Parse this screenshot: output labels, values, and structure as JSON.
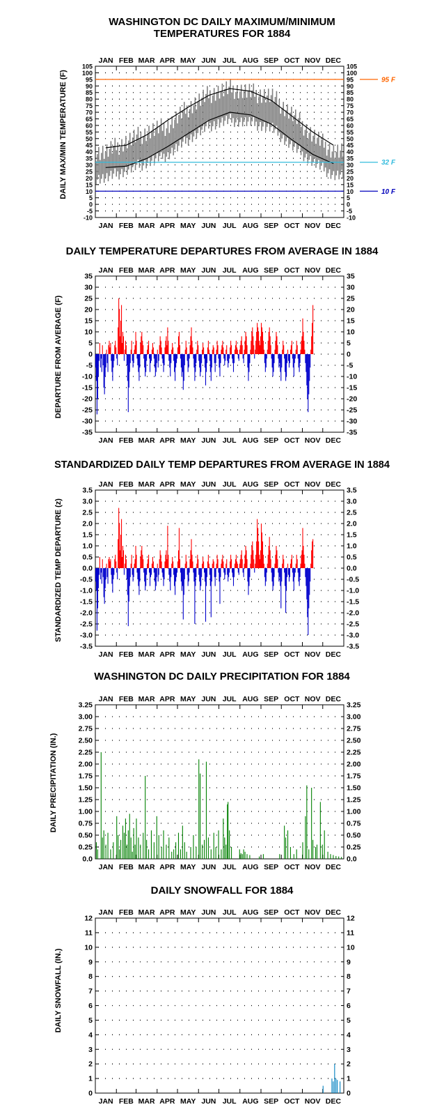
{
  "colors": {
    "above": "#ff0000",
    "below": "#0000cc",
    "precip": "#008000",
    "snow": "#0080c0",
    "line95": "#ff6600",
    "line32": "#33bbdd",
    "line10": "#0000bb",
    "obs": "#808080"
  },
  "chart_data": [
    {
      "type": "line",
      "title": "WASHINGTON DC DAILY MAXIMUM/MINIMUM\nTEMPERATURES FOR 1884",
      "ylabel": "DAILY MAX/MIN TEMPERATURE (F)",
      "months": [
        "JAN",
        "FEB",
        "MAR",
        "APR",
        "MAY",
        "JUN",
        "JUL",
        "AUG",
        "SEP",
        "OCT",
        "NOV",
        "DEC"
      ],
      "ylim": [
        -10,
        105
      ],
      "yticks": [
        "-10",
        "-5",
        "0",
        "5",
        "10",
        "15",
        "20",
        "25",
        "30",
        "35",
        "40",
        "45",
        "50",
        "55",
        "60",
        "65",
        "70",
        "75",
        "80",
        "85",
        "90",
        "95",
        "100",
        "105"
      ],
      "grid": true,
      "reference_lines": [
        {
          "value": 95,
          "label": "95 F",
          "color": "#ff6600"
        },
        {
          "value": 32,
          "label": "32 F",
          "color": "#33bbdd"
        },
        {
          "value": 10,
          "label": "10 F",
          "color": "#0000bb"
        }
      ],
      "series": [
        {
          "name": "",
          "note": "observed daily max/min range (gray band), approx. monthly center range",
          "max": [
            40,
            48,
            55,
            60,
            74,
            84,
            88,
            85,
            82,
            68,
            52,
            40
          ],
          "min": [
            24,
            30,
            36,
            42,
            54,
            64,
            68,
            66,
            62,
            48,
            36,
            26
          ]
        },
        {
          "name": "",
          "values": [
            43,
            45,
            53,
            64,
            74,
            83,
            88,
            86,
            79,
            67,
            55,
            45
          ]
        },
        {
          "name": "",
          "values": [
            28,
            29,
            35,
            44,
            54,
            64,
            70,
            68,
            61,
            49,
            38,
            31
          ]
        }
      ]
    },
    {
      "type": "bar",
      "title": "DAILY TEMPERATURE DEPARTURES FROM AVERAGE IN 1884",
      "ylabel": "DEPARTURE FROM AVERAGE (F)",
      "months": [
        "JAN",
        "FEB",
        "MAR",
        "APR",
        "MAY",
        "JUN",
        "JUL",
        "AUG",
        "SEP",
        "OCT",
        "NOV",
        "DEC"
      ],
      "ylim": [
        -35,
        35
      ],
      "yticks": [
        "-35",
        "-30",
        "-25",
        "-20",
        "-15",
        "-10",
        "-5",
        "0",
        "5",
        "10",
        "15",
        "20",
        "25",
        "30",
        "35"
      ],
      "grid": true,
      "values": [
        -6,
        -12,
        -27,
        -20,
        -10,
        -3,
        5,
        -6,
        -2,
        -8,
        4,
        -5,
        -15,
        -18,
        -10,
        -6,
        2,
        -4,
        -8,
        4,
        6,
        3,
        5,
        -3,
        -8,
        -12,
        -6,
        -3,
        4,
        6,
        3,
        -2,
        -5,
        12,
        25,
        20,
        8,
        15,
        22,
        5,
        10,
        8,
        -3,
        2,
        6,
        4,
        -5,
        -12,
        -26,
        -15,
        -8,
        -4,
        2,
        6,
        -3,
        -6,
        -4,
        2,
        4,
        10,
        6,
        -2,
        -5,
        -8,
        -12,
        -6,
        5,
        8,
        10,
        6,
        4,
        -2,
        -6,
        -10,
        -8,
        -3,
        2,
        4,
        6,
        -2,
        -8,
        -4,
        -3,
        2,
        5,
        3,
        -2,
        -6,
        -10,
        -8,
        -4,
        2,
        -6,
        -3,
        4,
        8,
        6,
        3,
        -2,
        -4,
        -8,
        -5,
        3,
        6,
        8,
        4,
        12,
        6,
        -3,
        -6,
        -10,
        -4,
        2,
        5,
        3,
        -3,
        -8,
        -12,
        -6,
        -4,
        -2,
        3,
        8,
        10,
        4,
        -2,
        -6,
        -10,
        -8,
        -16,
        -12,
        -5,
        2,
        6,
        3,
        -3,
        -8,
        -6,
        -2,
        4,
        8,
        12,
        6,
        3,
        -2,
        -6,
        -12,
        -8,
        -4,
        2,
        6,
        4,
        -3,
        -6,
        -10,
        -8,
        -4,
        2,
        5,
        3,
        -2,
        -6,
        -14,
        -8,
        -4,
        3,
        6,
        2,
        -3,
        -8,
        -12,
        -6,
        2,
        4,
        3,
        -4,
        -8,
        -4,
        2,
        6,
        4,
        -2,
        -6,
        -10,
        -4,
        2,
        4,
        6,
        3,
        -2,
        -5,
        -3,
        2,
        4,
        -3,
        -6,
        -4,
        -2,
        3,
        6,
        4,
        -2,
        -4,
        -8,
        -4,
        2,
        4,
        6,
        3,
        2,
        -2,
        -3,
        2,
        4,
        6,
        8,
        4,
        -2,
        -4,
        2,
        6,
        10,
        8,
        4,
        -6,
        -12,
        -8,
        -4,
        2,
        6,
        10,
        12,
        8,
        4,
        -2,
        2,
        6,
        10,
        14,
        12,
        10,
        6,
        4,
        8,
        14,
        12,
        10,
        6,
        2,
        -4,
        -8,
        -6,
        -2,
        2,
        6,
        10,
        12,
        8,
        4,
        -2,
        -6,
        -10,
        -8,
        -4,
        2,
        6,
        10,
        8,
        4,
        -2,
        -6,
        -4,
        -8,
        -12,
        -6,
        2,
        6,
        4,
        -2,
        -8,
        -12,
        -10,
        -4,
        2,
        -3,
        -6,
        -4,
        2,
        4,
        6,
        -2,
        -6,
        -10,
        -4,
        -2,
        2,
        6,
        4,
        -2,
        -6,
        -8,
        -4,
        2,
        6,
        8,
        16,
        10,
        6,
        2,
        -4,
        -8,
        -14,
        -20,
        -26,
        -18,
        -12,
        -6,
        2,
        8,
        14,
        22
      ]
    },
    {
      "type": "bar",
      "title": "STANDARDIZED DAILY TEMP DEPARTURES FROM AVERAGE IN 1884",
      "ylabel": "STANDARDIZED TEMP DEPARTURE (z)",
      "months": [
        "JAN",
        "FEB",
        "MAR",
        "APR",
        "MAY",
        "JUN",
        "JUL",
        "AUG",
        "SEP",
        "OCT",
        "NOV",
        "DEC"
      ],
      "ylim": [
        -3.5,
        3.5
      ],
      "yticks": [
        "-3.5",
        "-3.0",
        "-2.5",
        "-2.0",
        "-1.5",
        "-1.0",
        "-0.5",
        "0.0",
        "0.5",
        "1.0",
        "1.5",
        "2.0",
        "2.5",
        "3.0",
        "3.5"
      ],
      "grid": true,
      "values": [
        -0.6,
        -1.0,
        -2.8,
        -1.8,
        -0.9,
        -0.3,
        0.5,
        -0.5,
        -0.2,
        -0.7,
        0.4,
        -0.4,
        -1.3,
        -1.6,
        -0.9,
        -0.5,
        0.2,
        -0.4,
        -0.7,
        0.4,
        0.5,
        0.3,
        0.4,
        -0.3,
        -0.7,
        -1.1,
        -0.5,
        -0.3,
        0.4,
        0.6,
        0.3,
        -0.2,
        -0.5,
        1.3,
        2.7,
        2.0,
        0.8,
        1.5,
        2.2,
        0.5,
        1.0,
        0.8,
        -0.3,
        0.2,
        0.6,
        0.4,
        -0.5,
        -1.2,
        -2.6,
        -1.5,
        -0.8,
        -0.4,
        0.2,
        0.6,
        -0.3,
        -0.6,
        -0.4,
        0.2,
        0.4,
        1.0,
        0.6,
        -0.2,
        -0.5,
        -0.8,
        -1.2,
        -0.6,
        0.5,
        0.8,
        1.0,
        0.6,
        0.4,
        -0.2,
        -0.6,
        -1.0,
        -0.8,
        -0.3,
        0.2,
        0.4,
        0.6,
        -0.2,
        -0.8,
        -0.4,
        -0.3,
        0.2,
        0.5,
        0.3,
        -0.2,
        -0.6,
        -1.0,
        -0.8,
        -0.4,
        0.2,
        -0.6,
        -0.3,
        0.4,
        0.8,
        0.6,
        0.3,
        -0.2,
        -0.4,
        -0.8,
        -0.5,
        0.3,
        0.6,
        0.8,
        0.4,
        1.9,
        0.6,
        -0.3,
        -0.6,
        -1.0,
        -0.4,
        0.2,
        0.5,
        0.3,
        -0.3,
        -0.8,
        -1.2,
        -0.6,
        -0.4,
        -0.2,
        0.3,
        0.8,
        1.8,
        0.4,
        -0.2,
        -0.6,
        -1.0,
        -0.8,
        -2.3,
        -1.2,
        -0.5,
        0.2,
        0.6,
        0.3,
        -0.3,
        -0.8,
        -0.6,
        -0.2,
        0.4,
        0.8,
        1.3,
        0.6,
        0.3,
        -0.2,
        -0.6,
        -2.5,
        -0.8,
        -0.4,
        0.2,
        0.6,
        0.4,
        -0.3,
        -0.6,
        -1.0,
        -0.8,
        -0.4,
        0.2,
        0.5,
        0.3,
        -0.2,
        -0.6,
        -2.4,
        -0.8,
        -0.4,
        0.3,
        0.6,
        0.2,
        -0.3,
        -0.8,
        -2.2,
        -0.6,
        0.2,
        0.4,
        0.3,
        -0.4,
        -0.8,
        -0.4,
        0.2,
        0.6,
        0.4,
        -0.2,
        -0.6,
        -1.6,
        -0.4,
        0.2,
        0.4,
        0.6,
        0.3,
        -0.2,
        -0.5,
        -0.3,
        0.2,
        0.4,
        -0.3,
        -0.6,
        -0.4,
        -0.2,
        0.3,
        0.6,
        0.4,
        -0.2,
        -0.4,
        -0.8,
        -0.4,
        0.2,
        0.4,
        0.6,
        0.3,
        0.2,
        -0.2,
        -0.3,
        0.2,
        0.4,
        0.6,
        0.8,
        0.4,
        -0.2,
        -0.4,
        0.2,
        0.6,
        1.0,
        0.8,
        0.4,
        -0.6,
        -1.2,
        -0.8,
        -0.4,
        0.2,
        0.6,
        1.0,
        1.2,
        0.8,
        0.4,
        -0.2,
        0.2,
        0.6,
        1.2,
        2.2,
        1.8,
        1.2,
        0.6,
        0.4,
        0.8,
        2.0,
        1.6,
        1.2,
        0.6,
        0.2,
        -0.4,
        -0.8,
        -0.6,
        -0.2,
        0.2,
        0.6,
        1.0,
        1.4,
        0.8,
        0.4,
        -0.2,
        -0.6,
        -1.0,
        -0.8,
        -0.4,
        0.2,
        0.6,
        1.0,
        0.8,
        0.4,
        -0.2,
        -0.6,
        -0.4,
        -0.8,
        -1.8,
        -0.6,
        0.2,
        0.6,
        0.4,
        -0.2,
        -0.8,
        -2.0,
        -1.0,
        -0.4,
        0.2,
        -0.3,
        -0.6,
        -0.4,
        0.2,
        0.4,
        0.6,
        -0.2,
        -0.6,
        -1.0,
        -0.4,
        -0.2,
        0.2,
        0.6,
        0.4,
        -0.2,
        -0.6,
        -0.8,
        -0.4,
        0.2,
        0.6,
        0.8,
        1.8,
        1.0,
        0.6,
        0.2,
        -0.4,
        -0.8,
        -1.4,
        -2.2,
        -3.0,
        -1.8,
        -1.2,
        -0.6,
        0.2,
        0.8,
        1.2,
        1.3
      ]
    },
    {
      "type": "bar",
      "title": "WASHINGTON DC DAILY PRECIPITATION FOR 1884",
      "ylabel": "DAILY PRECIPITATION (IN.)",
      "months": [
        "JAN",
        "FEB",
        "MAR",
        "APR",
        "MAY",
        "JUN",
        "JUL",
        "AUG",
        "SEP",
        "OCT",
        "NOV",
        "DEC"
      ],
      "ylim": [
        0,
        3.25
      ],
      "yticks": [
        "0.0",
        "0.25",
        "0.50",
        "0.75",
        "1.00",
        "1.25",
        "1.50",
        "1.75",
        "2.00",
        "2.25",
        "2.50",
        "2.75",
        "3.00",
        "3.25"
      ],
      "grid": true,
      "events": [
        [
          1,
          0.35
        ],
        [
          3,
          0.2
        ],
        [
          8,
          2.25
        ],
        [
          10,
          0.45
        ],
        [
          12,
          0.6
        ],
        [
          15,
          0.3
        ],
        [
          18,
          0.55
        ],
        [
          22,
          0.2
        ],
        [
          26,
          0.35
        ],
        [
          31,
          0.9
        ],
        [
          33,
          0.5
        ],
        [
          35,
          0.2
        ],
        [
          37,
          0.4
        ],
        [
          40,
          0.7
        ],
        [
          42,
          0.55
        ],
        [
          44,
          0.85
        ],
        [
          46,
          0.3
        ],
        [
          48,
          0.6
        ],
        [
          50,
          0.95
        ],
        [
          52,
          0.45
        ],
        [
          54,
          0.15
        ],
        [
          56,
          0.65
        ],
        [
          58,
          0.3
        ],
        [
          60,
          0.85
        ],
        [
          63,
          0.45
        ],
        [
          66,
          0.3
        ],
        [
          70,
          0.55
        ],
        [
          73,
          1.75
        ],
        [
          75,
          0.4
        ],
        [
          78,
          0.2
        ],
        [
          82,
          0.6
        ],
        [
          86,
          0.35
        ],
        [
          90,
          0.9
        ],
        [
          93,
          0.5
        ],
        [
          97,
          0.25
        ],
        [
          100,
          0.6
        ],
        [
          104,
          0.3
        ],
        [
          108,
          0.45
        ],
        [
          112,
          0.15
        ],
        [
          115,
          0.2
        ],
        [
          118,
          0.35
        ],
        [
          122,
          0.55
        ],
        [
          125,
          0.2
        ],
        [
          128,
          0.7
        ],
        [
          131,
          0.35
        ],
        [
          134,
          0.15
        ],
        [
          140,
          0.25
        ],
        [
          144,
          0.5
        ],
        [
          148,
          0.25
        ],
        [
          152,
          2.1
        ],
        [
          154,
          1.8
        ],
        [
          157,
          0.3
        ],
        [
          160,
          0.4
        ],
        [
          163,
          2.05
        ],
        [
          166,
          0.45
        ],
        [
          170,
          0.2
        ],
        [
          174,
          0.55
        ],
        [
          177,
          0.25
        ],
        [
          181,
          0.6
        ],
        [
          185,
          0.2
        ],
        [
          188,
          0.85
        ],
        [
          190,
          0.45
        ],
        [
          192,
          0.3
        ],
        [
          194,
          1.15
        ],
        [
          195,
          1.2
        ],
        [
          197,
          0.6
        ],
        [
          200,
          0.25
        ],
        [
          212,
          0.2
        ],
        [
          214,
          0.12
        ],
        [
          216,
          0.1
        ],
        [
          218,
          0.2
        ],
        [
          220,
          0.15
        ],
        [
          223,
          0.1
        ],
        [
          227,
          0.08
        ],
        [
          241,
          0.05
        ],
        [
          247,
          0.1
        ],
        [
          271,
          0.1
        ],
        [
          278,
          0.7
        ],
        [
          280,
          0.45
        ],
        [
          283,
          0.6
        ],
        [
          287,
          0.25
        ],
        [
          292,
          0.1
        ],
        [
          296,
          0.2
        ],
        [
          305,
          0.35
        ],
        [
          309,
          0.9
        ],
        [
          311,
          1.55
        ],
        [
          314,
          0.2
        ],
        [
          318,
          1.5
        ],
        [
          320,
          0.4
        ],
        [
          324,
          0.25
        ],
        [
          326,
          0.3
        ],
        [
          331,
          1.2
        ],
        [
          334,
          0.3
        ],
        [
          337,
          0.6
        ],
        [
          342,
          0.15
        ],
        [
          346,
          0.1
        ],
        [
          350,
          0.08
        ],
        [
          354,
          0.06
        ],
        [
          358,
          0.05
        ],
        [
          362,
          0.04
        ]
      ]
    },
    {
      "type": "bar",
      "title": "DAILY SNOWFALL FOR 1884",
      "ylabel": "DAILY SNOWFALL (IN.)",
      "months": [
        "JAN",
        "FEB",
        "MAR",
        "APR",
        "MAY",
        "JUN",
        "JUL",
        "AUG",
        "SEP",
        "OCT",
        "NOV",
        "DEC"
      ],
      "ylim": [
        0,
        12
      ],
      "yticks": [
        "0",
        "1",
        "2",
        "3",
        "4",
        "5",
        "6",
        "7",
        "8",
        "9",
        "10",
        "11",
        "12"
      ],
      "grid": true,
      "events": [
        [
          335,
          0.5
        ],
        [
          348,
          1.0
        ],
        [
          350,
          0.8
        ],
        [
          352,
          2.0
        ],
        [
          354,
          1.0
        ],
        [
          356,
          0.9
        ],
        [
          360,
          0.8
        ]
      ]
    }
  ]
}
